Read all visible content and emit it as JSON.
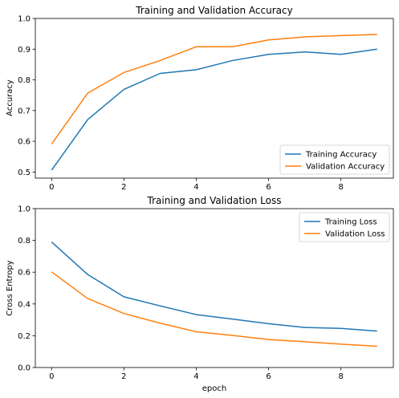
{
  "colors": {
    "training": "#1f77b4",
    "validation": "#ff7f0e"
  },
  "chart_data": [
    {
      "type": "line",
      "title": "Training and Validation Accuracy",
      "xlabel": "",
      "ylabel": "Accuracy",
      "x": [
        0,
        1,
        2,
        3,
        4,
        5,
        6,
        7,
        8,
        9
      ],
      "xlim": [
        -0.45,
        9.45
      ],
      "ylim": [
        0.48,
        1.0
      ],
      "xticks": [
        "0",
        "2",
        "4",
        "6",
        "8"
      ],
      "yticks": [
        "0.5",
        "0.6",
        "0.7",
        "0.8",
        "0.9",
        "1.0"
      ],
      "legend": "lower-right",
      "grid": false,
      "series": [
        {
          "name": "Training Accuracy",
          "values": [
            0.506,
            0.671,
            0.769,
            0.821,
            0.833,
            0.863,
            0.883,
            0.891,
            0.883,
            0.9
          ]
        },
        {
          "name": "Validation Accuracy",
          "values": [
            0.591,
            0.757,
            0.824,
            0.863,
            0.908,
            0.908,
            0.93,
            0.94,
            0.944,
            0.948
          ]
        }
      ]
    },
    {
      "type": "line",
      "title": "Training and Validation Loss",
      "xlabel": "epoch",
      "ylabel": "Cross Entropy",
      "x": [
        0,
        1,
        2,
        3,
        4,
        5,
        6,
        7,
        8,
        9
      ],
      "xlim": [
        -0.45,
        9.45
      ],
      "ylim": [
        0.0,
        1.0
      ],
      "xticks": [
        "0",
        "2",
        "4",
        "6",
        "8"
      ],
      "yticks": [
        "0.0",
        "0.2",
        "0.4",
        "0.6",
        "0.8",
        "1.0"
      ],
      "legend": "upper-right",
      "grid": false,
      "series": [
        {
          "name": "Training Loss",
          "values": [
            0.79,
            0.585,
            0.445,
            0.388,
            0.333,
            0.305,
            0.276,
            0.252,
            0.246,
            0.229
          ]
        },
        {
          "name": "Validation Loss",
          "values": [
            0.602,
            0.434,
            0.34,
            0.279,
            0.225,
            0.202,
            0.176,
            0.162,
            0.147,
            0.134
          ]
        }
      ]
    }
  ]
}
